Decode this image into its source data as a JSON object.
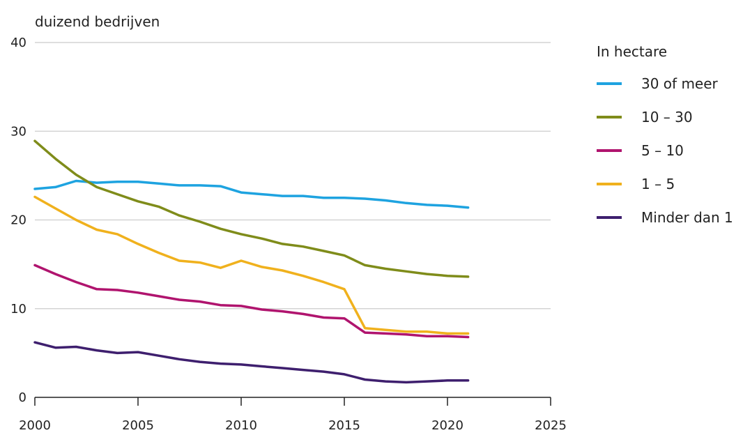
{
  "chart_data": {
    "type": "line",
    "ylabel": "duizend bedrijven",
    "xlabel": "",
    "xlim": [
      2000,
      2025
    ],
    "ylim": [
      0,
      40
    ],
    "xticks": [
      2000,
      2005,
      2010,
      2015,
      2020,
      2025
    ],
    "yticks": [
      0,
      10,
      20,
      30,
      40
    ],
    "grid": "horizontal",
    "legend_title": "In hectare",
    "legend_position": "right",
    "x": [
      2000,
      2001,
      2002,
      2003,
      2004,
      2005,
      2006,
      2007,
      2008,
      2009,
      2010,
      2011,
      2012,
      2013,
      2014,
      2015,
      2016,
      2017,
      2018,
      2019,
      2020,
      2021
    ],
    "series": [
      {
        "name": "30 of meer",
        "color": "#1ea3e0",
        "values": [
          23.5,
          23.7,
          24.4,
          24.2,
          24.3,
          24.3,
          24.1,
          23.9,
          23.9,
          23.8,
          23.1,
          22.9,
          22.7,
          22.7,
          22.5,
          22.5,
          22.4,
          22.2,
          21.9,
          21.7,
          21.6,
          21.4
        ]
      },
      {
        "name": "10 – 30",
        "color": "#7f8c1a",
        "values": [
          28.9,
          26.9,
          25.1,
          23.7,
          22.9,
          22.1,
          21.5,
          20.5,
          19.8,
          19.0,
          18.4,
          17.9,
          17.3,
          17.0,
          16.5,
          16.0,
          14.9,
          14.5,
          14.2,
          13.9,
          13.7,
          13.6
        ]
      },
      {
        "name": "5 – 10",
        "color": "#b0146e",
        "values": [
          14.9,
          13.9,
          13.0,
          12.2,
          12.1,
          11.8,
          11.4,
          11.0,
          10.8,
          10.4,
          10.3,
          9.9,
          9.7,
          9.4,
          9.0,
          8.9,
          7.3,
          7.2,
          7.1,
          6.9,
          6.9,
          6.8
        ]
      },
      {
        "name": "1 – 5",
        "color": "#f0b11d",
        "values": [
          22.6,
          21.3,
          20.0,
          18.9,
          18.4,
          17.3,
          16.3,
          15.4,
          15.2,
          14.6,
          15.4,
          14.7,
          14.3,
          13.7,
          13.0,
          12.2,
          7.8,
          7.6,
          7.4,
          7.4,
          7.2,
          7.2
        ]
      },
      {
        "name": "Minder dan 1",
        "color": "#3e1f6e",
        "values": [
          6.2,
          5.6,
          5.7,
          5.3,
          5.0,
          5.1,
          4.7,
          4.3,
          4.0,
          3.8,
          3.7,
          3.5,
          3.3,
          3.1,
          2.9,
          2.6,
          2.0,
          1.8,
          1.7,
          1.8,
          1.9,
          1.9
        ]
      }
    ]
  }
}
